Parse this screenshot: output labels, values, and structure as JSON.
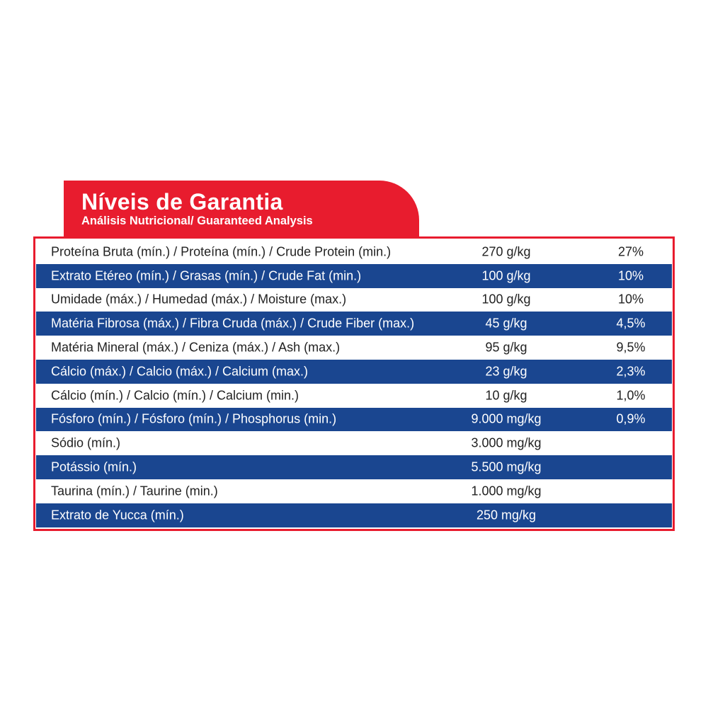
{
  "header": {
    "title": "Níveis de Garantia",
    "subtitle": "Análisis Nutricional/ Guaranteed Analysis"
  },
  "colors": {
    "red": "#e81c2e",
    "blue": "#1a4690"
  },
  "rows": [
    {
      "name": "Proteína Bruta (mín.) / Proteína (mín.) / Crude Protein (min.)",
      "value": "270 g/kg",
      "percent": "27%"
    },
    {
      "name": "Extrato Etéreo (mín.) / Grasas (mín.) / Crude Fat (min.)",
      "value": "100 g/kg",
      "percent": "10%"
    },
    {
      "name": "Umidade (máx.) / Humedad (máx.) / Moisture (max.)",
      "value": "100 g/kg",
      "percent": "10%"
    },
    {
      "name": "Matéria Fibrosa (máx.) / Fibra Cruda (máx.) / Crude Fiber (max.)",
      "value": "45 g/kg",
      "percent": "4,5%"
    },
    {
      "name": "Matéria Mineral (máx.) / Ceniza (máx.) / Ash (max.)",
      "value": "95 g/kg",
      "percent": "9,5%"
    },
    {
      "name": "Cálcio (máx.) / Calcio (máx.) / Calcium (max.)",
      "value": "23 g/kg",
      "percent": "2,3%"
    },
    {
      "name": "Cálcio (mín.) / Calcio (mín.) / Calcium (min.)",
      "value": "10 g/kg",
      "percent": "1,0%"
    },
    {
      "name": "Fósforo (mín.) / Fósforo (mín.) / Phosphorus (min.)",
      "value": "9.000 mg/kg",
      "percent": "0,9%"
    },
    {
      "name": "Sódio (mín.)",
      "value": "3.000 mg/kg",
      "percent": ""
    },
    {
      "name": "Potássio (mín.)",
      "value": "5.500 mg/kg",
      "percent": ""
    },
    {
      "name": "Taurina (mín.) / Taurine (min.)",
      "value": "1.000 mg/kg",
      "percent": ""
    },
    {
      "name": "Extrato de Yucca (mín.)",
      "value": "250 mg/kg",
      "percent": ""
    }
  ]
}
